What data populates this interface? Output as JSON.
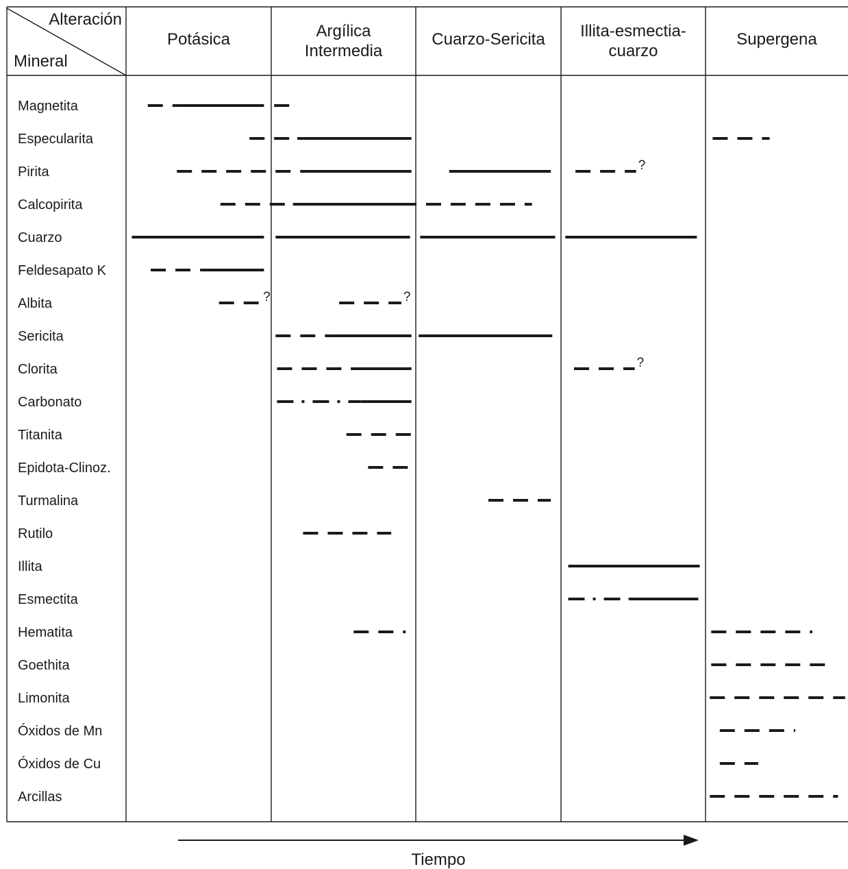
{
  "corner": {
    "top_label": "Alteración",
    "bottom_label": "Mineral"
  },
  "columns": [
    {
      "lines": [
        "Potásica"
      ]
    },
    {
      "lines": [
        "Argílica",
        "Intermedia"
      ]
    },
    {
      "lines": [
        "Cuarzo-Sericita"
      ]
    },
    {
      "lines": [
        "Illita-esmectia-",
        "cuarzo"
      ]
    },
    {
      "lines": [
        "Supergena"
      ]
    }
  ],
  "time_label": "Tiempo",
  "minerals": [
    {
      "name": "Magnetita",
      "segments": [
        {
          "from": 0.15,
          "to": 0.4,
          "style": "dashed"
        },
        {
          "from": 0.4,
          "to": 0.95,
          "style": "solid"
        },
        {
          "from": 1.02,
          "to": 1.13,
          "style": "dashed"
        }
      ]
    },
    {
      "name": "Especularita",
      "segments": [
        {
          "from": 0.85,
          "to": 1.18,
          "style": "dashed"
        },
        {
          "from": 1.18,
          "to": 1.97,
          "style": "solid"
        },
        {
          "from": 4.05,
          "to": 4.45,
          "style": "dashed"
        }
      ]
    },
    {
      "name": "Pirita",
      "segments": [
        {
          "from": 0.35,
          "to": 1.2,
          "style": "dashed"
        },
        {
          "from": 1.2,
          "to": 1.97,
          "style": "solid"
        },
        {
          "from": 2.23,
          "to": 2.93,
          "style": "solid"
        },
        {
          "from": 3.1,
          "to": 3.52,
          "style": "dashed",
          "query": true
        }
      ]
    },
    {
      "name": "Calcopirita",
      "segments": [
        {
          "from": 0.65,
          "to": 1.15,
          "style": "dashed"
        },
        {
          "from": 1.15,
          "to": 1.9,
          "style": "solid"
        },
        {
          "from": 1.9,
          "to": 2.8,
          "style": "dashed"
        }
      ]
    },
    {
      "name": "Cuarzo",
      "segments": [
        {
          "from": 0.04,
          "to": 0.95,
          "style": "solid"
        },
        {
          "from": 1.03,
          "to": 1.96,
          "style": "solid"
        },
        {
          "from": 2.03,
          "to": 2.96,
          "style": "solid"
        },
        {
          "from": 3.03,
          "to": 3.94,
          "style": "solid"
        }
      ]
    },
    {
      "name": "Feldesapato K",
      "segments": [
        {
          "from": 0.17,
          "to": 0.52,
          "style": "dashed"
        },
        {
          "from": 0.52,
          "to": 0.95,
          "style": "solid"
        }
      ]
    },
    {
      "name": "Albita",
      "segments": [
        {
          "from": 0.64,
          "to": 0.93,
          "style": "dashed",
          "query": true
        },
        {
          "from": 1.47,
          "to": 1.9,
          "style": "dashed",
          "query": true
        }
      ]
    },
    {
      "name": "Sericita",
      "segments": [
        {
          "from": 1.03,
          "to": 1.4,
          "style": "dashed"
        },
        {
          "from": 1.4,
          "to": 1.97,
          "style": "solid"
        },
        {
          "from": 2.02,
          "to": 2.94,
          "style": "solid"
        }
      ]
    },
    {
      "name": "Clorita",
      "segments": [
        {
          "from": 1.04,
          "to": 1.55,
          "style": "dashed"
        },
        {
          "from": 1.55,
          "to": 1.97,
          "style": "solid"
        },
        {
          "from": 3.09,
          "to": 3.51,
          "style": "dashed",
          "query": true
        }
      ]
    },
    {
      "name": "Carbonato",
      "segments": [
        {
          "from": 1.04,
          "to": 1.62,
          "style": "dash-dot"
        },
        {
          "from": 1.62,
          "to": 1.97,
          "style": "solid"
        }
      ]
    },
    {
      "name": "Titanita",
      "segments": [
        {
          "from": 1.52,
          "to": 1.97,
          "style": "dashed"
        }
      ]
    },
    {
      "name": "Epidota-Clinoz.",
      "segments": [
        {
          "from": 1.67,
          "to": 1.95,
          "style": "dashed"
        }
      ]
    },
    {
      "name": "Turmalina",
      "segments": [
        {
          "from": 2.5,
          "to": 2.93,
          "style": "dashed"
        }
      ]
    },
    {
      "name": "Rutilo",
      "segments": [
        {
          "from": 1.22,
          "to": 1.83,
          "style": "dashed"
        }
      ]
    },
    {
      "name": "Illita",
      "segments": [
        {
          "from": 3.05,
          "to": 3.96,
          "style": "solid"
        }
      ]
    },
    {
      "name": "Esmectita",
      "segments": [
        {
          "from": 3.05,
          "to": 3.47,
          "style": "dash-dot"
        },
        {
          "from": 3.47,
          "to": 3.95,
          "style": "solid"
        }
      ]
    },
    {
      "name": "Hematita",
      "segments": [
        {
          "from": 1.57,
          "to": 1.93,
          "style": "dashed"
        },
        {
          "from": 4.04,
          "to": 4.75,
          "style": "dashed"
        }
      ]
    },
    {
      "name": "Goethita",
      "segments": [
        {
          "from": 4.04,
          "to": 4.9,
          "style": "dashed"
        }
      ]
    },
    {
      "name": "Limonita",
      "segments": [
        {
          "from": 4.03,
          "to": 4.98,
          "style": "dashed"
        }
      ]
    },
    {
      "name": "Óxidos de Mn",
      "segments": [
        {
          "from": 4.1,
          "to": 4.63,
          "style": "dashed"
        }
      ]
    },
    {
      "name": "Óxidos de Cu",
      "segments": [
        {
          "from": 4.1,
          "to": 4.37,
          "style": "dashed"
        }
      ]
    },
    {
      "name": "Arcillas",
      "segments": [
        {
          "from": 4.03,
          "to": 4.93,
          "style": "dashed"
        }
      ]
    }
  ]
}
